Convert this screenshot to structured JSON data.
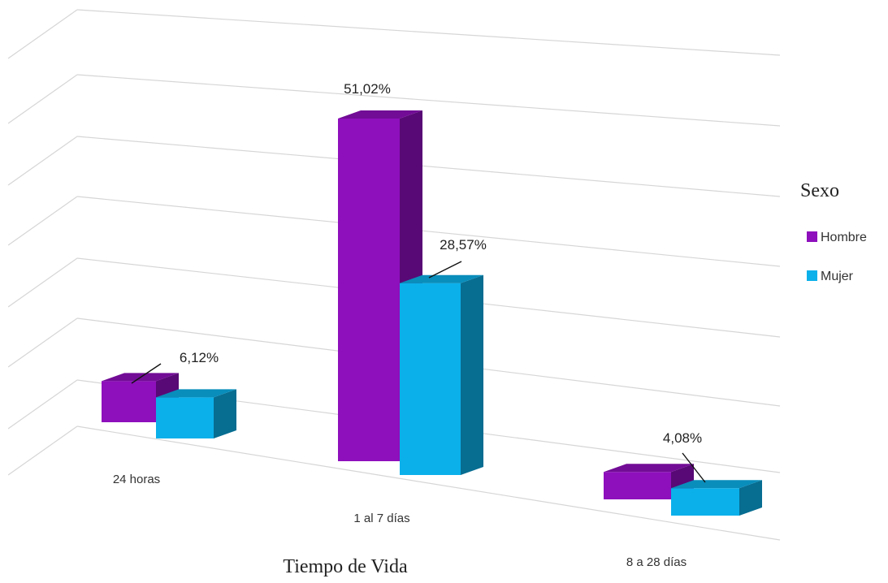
{
  "chart_data": {
    "type": "bar",
    "title": "",
    "xlabel": "Tiempo de Vida",
    "ylabel": "",
    "categories": [
      "24 horas",
      "1  al 7 días",
      "8 a 28 días"
    ],
    "series": [
      {
        "name": "Hombre",
        "values": [
          6.12,
          51.02,
          4.08
        ],
        "labels": [
          "6,12%",
          "51,02%",
          "4,08%"
        ],
        "color": "#8e0fbc"
      },
      {
        "name": "Mujer",
        "values": [
          6.12,
          28.57,
          4.08
        ],
        "labels": [
          "",
          "28,57%",
          ""
        ],
        "color": "#0bb0ea"
      }
    ],
    "legend": {
      "title": "Sexo",
      "position": "right"
    },
    "grid": true,
    "style": "3d-column"
  }
}
